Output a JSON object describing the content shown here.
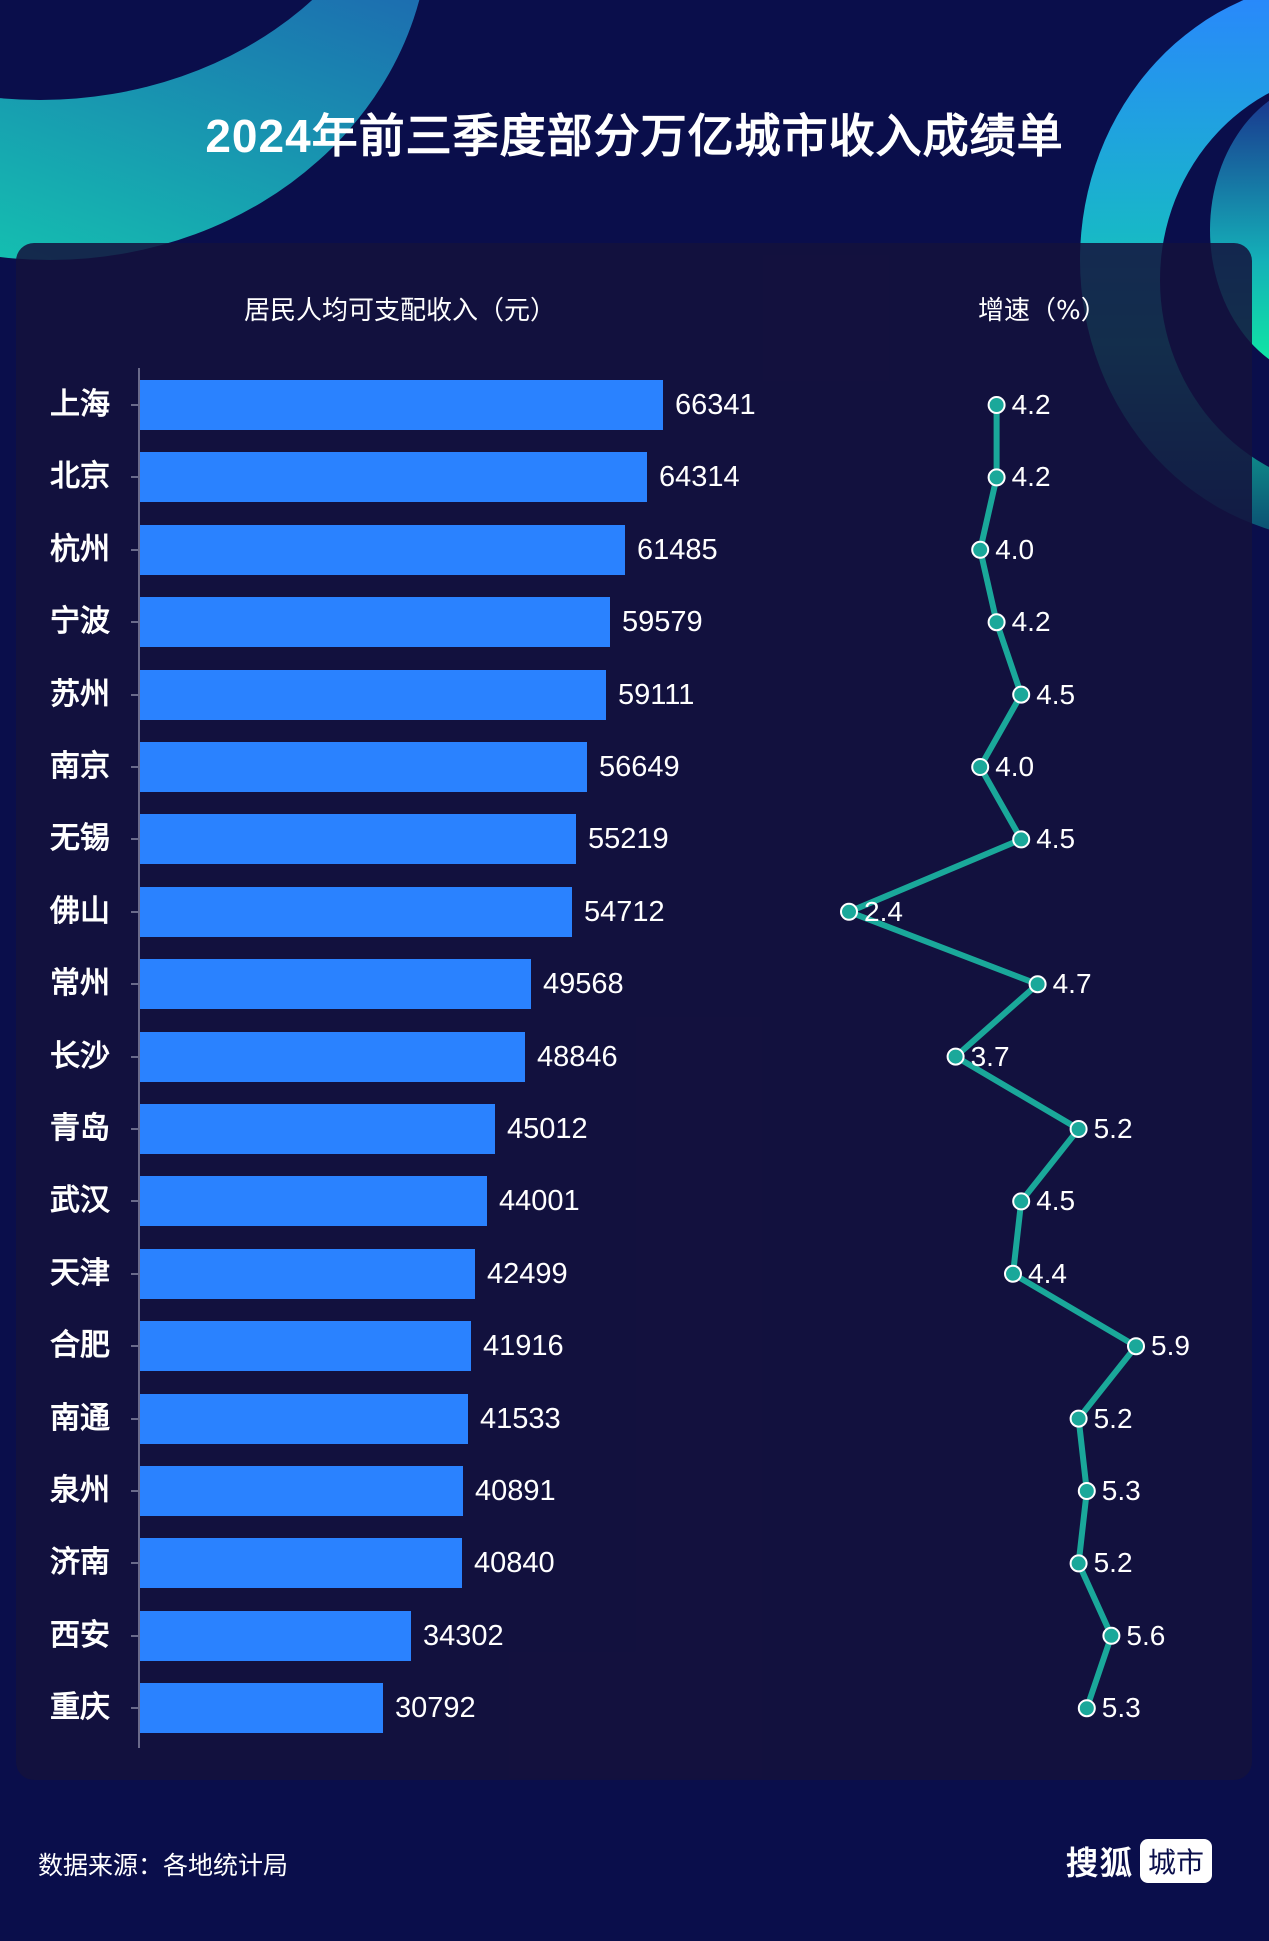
{
  "title": "2024年前三季度部分万亿城市收入成绩单",
  "columns": {
    "income_title": "居民人均可支配收入（元）",
    "growth_title": "增速（%）"
  },
  "colors": {
    "bar": "#2a82ff",
    "line": "#1aa89a",
    "background": "#0a0e4b",
    "card": "#14123c"
  },
  "rows": [
    {
      "city": "上海",
      "income": "66341",
      "growth": "4.2"
    },
    {
      "city": "北京",
      "income": "64314",
      "growth": "4.2"
    },
    {
      "city": "杭州",
      "income": "61485",
      "growth": "4.0"
    },
    {
      "city": "宁波",
      "income": "59579",
      "growth": "4.2"
    },
    {
      "city": "苏州",
      "income": "59111",
      "growth": "4.5"
    },
    {
      "city": "南京",
      "income": "56649",
      "growth": "4.0"
    },
    {
      "city": "无锡",
      "income": "55219",
      "growth": "4.5"
    },
    {
      "city": "佛山",
      "income": "54712",
      "growth": "2.4"
    },
    {
      "city": "常州",
      "income": "49568",
      "growth": "4.7"
    },
    {
      "city": "长沙",
      "income": "48846",
      "growth": "3.7"
    },
    {
      "city": "青岛",
      "income": "45012",
      "growth": "5.2"
    },
    {
      "city": "武汉",
      "income": "44001",
      "growth": "4.5"
    },
    {
      "city": "天津",
      "income": "42499",
      "growth": "4.4"
    },
    {
      "city": "合肥",
      "income": "41916",
      "growth": "5.9"
    },
    {
      "city": "南通",
      "income": "41533",
      "growth": "5.2"
    },
    {
      "city": "泉州",
      "income": "40891",
      "growth": "5.3"
    },
    {
      "city": "济南",
      "income": "40840",
      "growth": "5.2"
    },
    {
      "city": "西安",
      "income": "34302",
      "growth": "5.6"
    },
    {
      "city": "重庆",
      "income": "30792",
      "growth": "5.3"
    }
  ],
  "footer": {
    "source": "数据来源：各地统计局",
    "logo_main": "搜狐",
    "logo_tag": "城市"
  },
  "chart_data": [
    {
      "type": "bar",
      "title": "居民人均可支配收入（元）",
      "orientation": "horizontal",
      "categories": [
        "上海",
        "北京",
        "杭州",
        "宁波",
        "苏州",
        "南京",
        "无锡",
        "佛山",
        "常州",
        "长沙",
        "青岛",
        "武汉",
        "天津",
        "合肥",
        "南通",
        "泉州",
        "济南",
        "西安",
        "重庆"
      ],
      "values": [
        66341,
        64314,
        61485,
        59579,
        59111,
        56649,
        55219,
        54712,
        49568,
        48846,
        45012,
        44001,
        42499,
        41916,
        41533,
        40891,
        40840,
        34302,
        30792
      ],
      "xlabel": "",
      "ylabel": "",
      "grid": false
    },
    {
      "type": "line",
      "title": "增速（%）",
      "orientation": "vertical",
      "categories": [
        "上海",
        "北京",
        "杭州",
        "宁波",
        "苏州",
        "南京",
        "无锡",
        "佛山",
        "常州",
        "长沙",
        "青岛",
        "武汉",
        "天津",
        "合肥",
        "南通",
        "泉州",
        "济南",
        "西安",
        "重庆"
      ],
      "values": [
        4.2,
        4.2,
        4.0,
        4.2,
        4.5,
        4.0,
        4.5,
        2.4,
        4.7,
        3.7,
        5.2,
        4.5,
        4.4,
        5.9,
        5.2,
        5.3,
        5.2,
        5.6,
        5.3
      ],
      "grid": false
    }
  ]
}
